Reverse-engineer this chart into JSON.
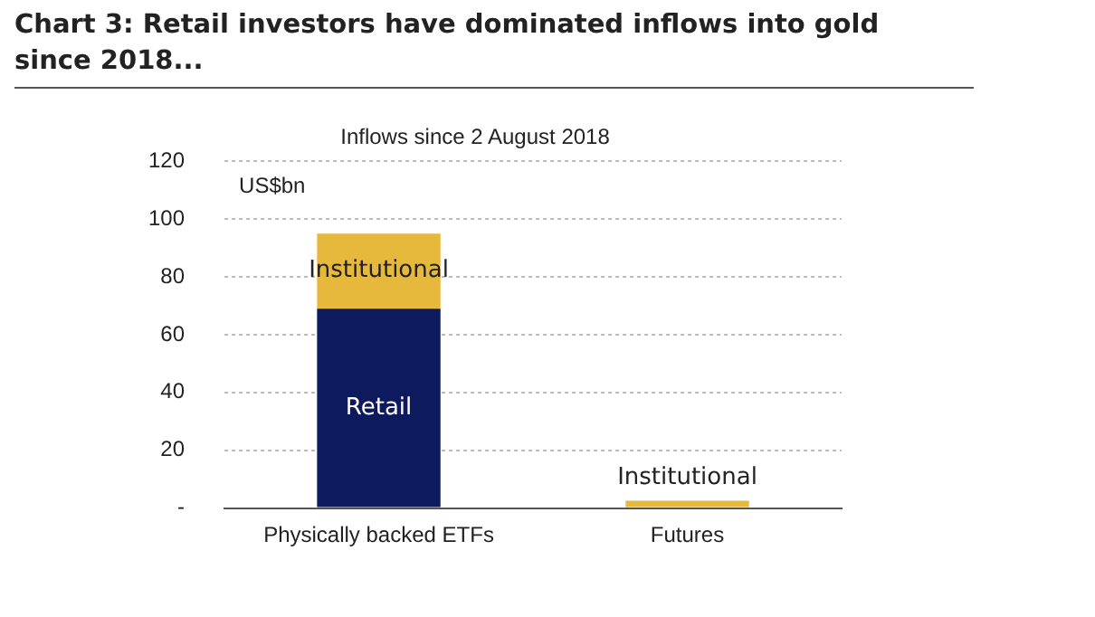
{
  "chart_data": {
    "type": "bar",
    "title": "Chart 3: Retail investors have dominated inflows into gold since 2018...",
    "subtitle": "Inflows since 2 August 2018",
    "ylabel": "US$bn",
    "categories": [
      "Physically backed ETFs",
      "Futures"
    ],
    "stacked": true,
    "series": [
      {
        "name": "Retail",
        "color": "#0e1a5e",
        "values": [
          69,
          0
        ]
      },
      {
        "name": "Institutional",
        "color": "#e6b93c",
        "values": [
          26,
          2.5
        ]
      }
    ],
    "ylim": [
      0,
      120
    ],
    "yticks": [
      {
        "value": 0,
        "label": "-"
      },
      20,
      40,
      60,
      80,
      100,
      120
    ],
    "grid": "y",
    "legend": false
  }
}
